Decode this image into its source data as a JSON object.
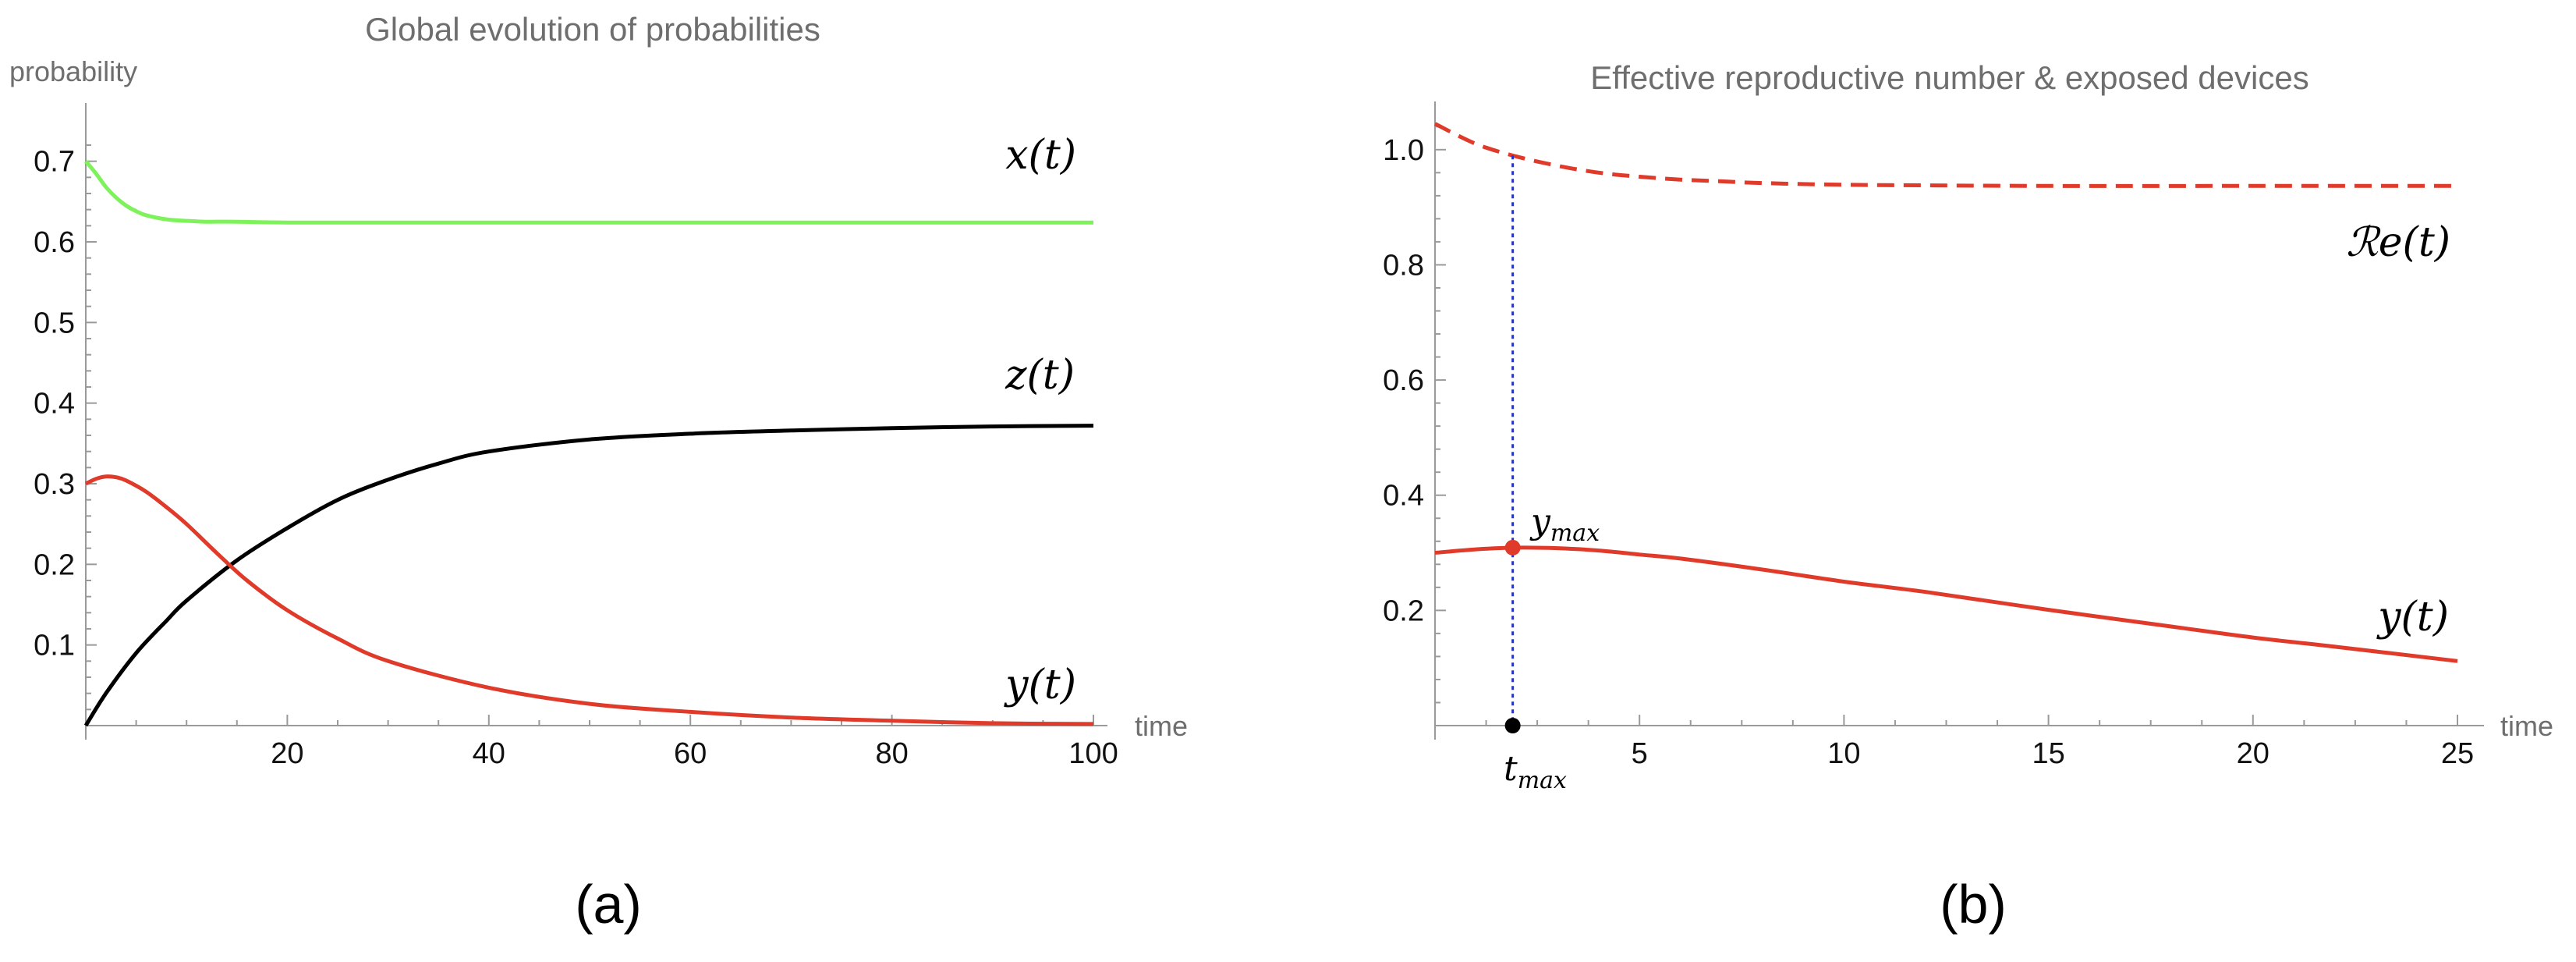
{
  "chart_data": [
    {
      "type": "line",
      "title": "Global evolution of probabilities",
      "ylabel": "probability",
      "xlabel": "time",
      "xlim": [
        0,
        100
      ],
      "ylim": [
        0,
        0.75
      ],
      "xticks": [
        20,
        40,
        60,
        80,
        100
      ],
      "xtick_labels": [
        "20",
        "40",
        "60",
        "80",
        "100"
      ],
      "yticks": [
        0.1,
        0.2,
        0.3,
        0.4,
        0.5,
        0.6,
        0.7
      ],
      "ytick_labels": [
        "0.1",
        "0.2",
        "0.3",
        "0.4",
        "0.5",
        "0.6",
        "0.7"
      ],
      "caption": "(a)",
      "series": [
        {
          "name": "x(t)",
          "label": "x(t)",
          "color": "#7ef25a",
          "label_color": "#3d8b1f",
          "x": [
            0,
            1,
            2,
            3,
            4,
            5,
            6,
            8,
            10,
            12,
            15,
            20,
            30,
            40,
            60,
            80,
            100
          ],
          "y": [
            0.7,
            0.685,
            0.668,
            0.655,
            0.645,
            0.638,
            0.633,
            0.628,
            0.626,
            0.625,
            0.625,
            0.624,
            0.624,
            0.624,
            0.624,
            0.624,
            0.624
          ]
        },
        {
          "name": "z(t)",
          "label": "z(t)",
          "color": "#000000",
          "label_color": "#000000",
          "x": [
            0,
            2,
            5,
            8,
            10,
            15,
            20,
            25,
            30,
            35,
            40,
            50,
            60,
            70,
            80,
            90,
            100
          ],
          "y": [
            0.0,
            0.04,
            0.09,
            0.13,
            0.155,
            0.205,
            0.245,
            0.28,
            0.305,
            0.325,
            0.34,
            0.355,
            0.362,
            0.366,
            0.369,
            0.371,
            0.372
          ]
        },
        {
          "name": "y(t)",
          "label": "y(t)",
          "color": "#e03a2a",
          "label_color": "#e03a2a",
          "x": [
            0,
            1,
            2,
            3,
            4,
            6,
            8,
            10,
            13,
            16,
            20,
            25,
            30,
            40,
            50,
            60,
            70,
            80,
            90,
            100
          ],
          "y": [
            0.3,
            0.306,
            0.309,
            0.308,
            0.304,
            0.29,
            0.271,
            0.25,
            0.214,
            0.18,
            0.143,
            0.108,
            0.08,
            0.047,
            0.027,
            0.017,
            0.01,
            0.006,
            0.003,
            0.002
          ]
        }
      ]
    },
    {
      "type": "line",
      "title": "Effective reproductive number & exposed devices",
      "xlabel": "time",
      "xlim": [
        0,
        25
      ],
      "ylim": [
        0,
        1.1
      ],
      "xticks": [
        5,
        10,
        15,
        20,
        25
      ],
      "xtick_labels": [
        "5",
        "10",
        "15",
        "20",
        "25"
      ],
      "yticks": [
        0.2,
        0.4,
        0.6,
        0.8,
        1.0
      ],
      "ytick_labels": [
        "0.2",
        "0.4",
        "0.6",
        "0.8",
        "1.0"
      ],
      "caption": "(b)",
      "series": [
        {
          "name": "Re(t)",
          "label": "ℛe(t)",
          "color": "#e03a2a",
          "label_color": "#e03a2a",
          "style": "dashed",
          "x": [
            0,
            1,
            2,
            3,
            4,
            5,
            6,
            7,
            8,
            10,
            12,
            15,
            20,
            25
          ],
          "y": [
            1.045,
            1.01,
            0.988,
            0.972,
            0.96,
            0.953,
            0.948,
            0.945,
            0.942,
            0.939,
            0.938,
            0.937,
            0.937,
            0.937
          ]
        },
        {
          "name": "y(t)",
          "label": "y(t)",
          "color": "#e03a2a",
          "label_color": "#e03a2a",
          "style": "solid",
          "x": [
            0,
            1,
            2,
            3,
            4,
            5,
            6,
            8,
            10,
            12,
            15,
            18,
            20,
            22,
            25
          ],
          "y": [
            0.3,
            0.306,
            0.309,
            0.308,
            0.304,
            0.297,
            0.29,
            0.271,
            0.25,
            0.232,
            0.201,
            0.172,
            0.153,
            0.137,
            0.112
          ]
        }
      ],
      "annotations": {
        "t_max": 1.9,
        "y_max": 0.309,
        "point_color": "#e03a2a",
        "tmax_point_color": "#000000",
        "vline_color": "#2233cc",
        "ymax_label": "ymax",
        "tmax_label": "tmax"
      }
    }
  ]
}
